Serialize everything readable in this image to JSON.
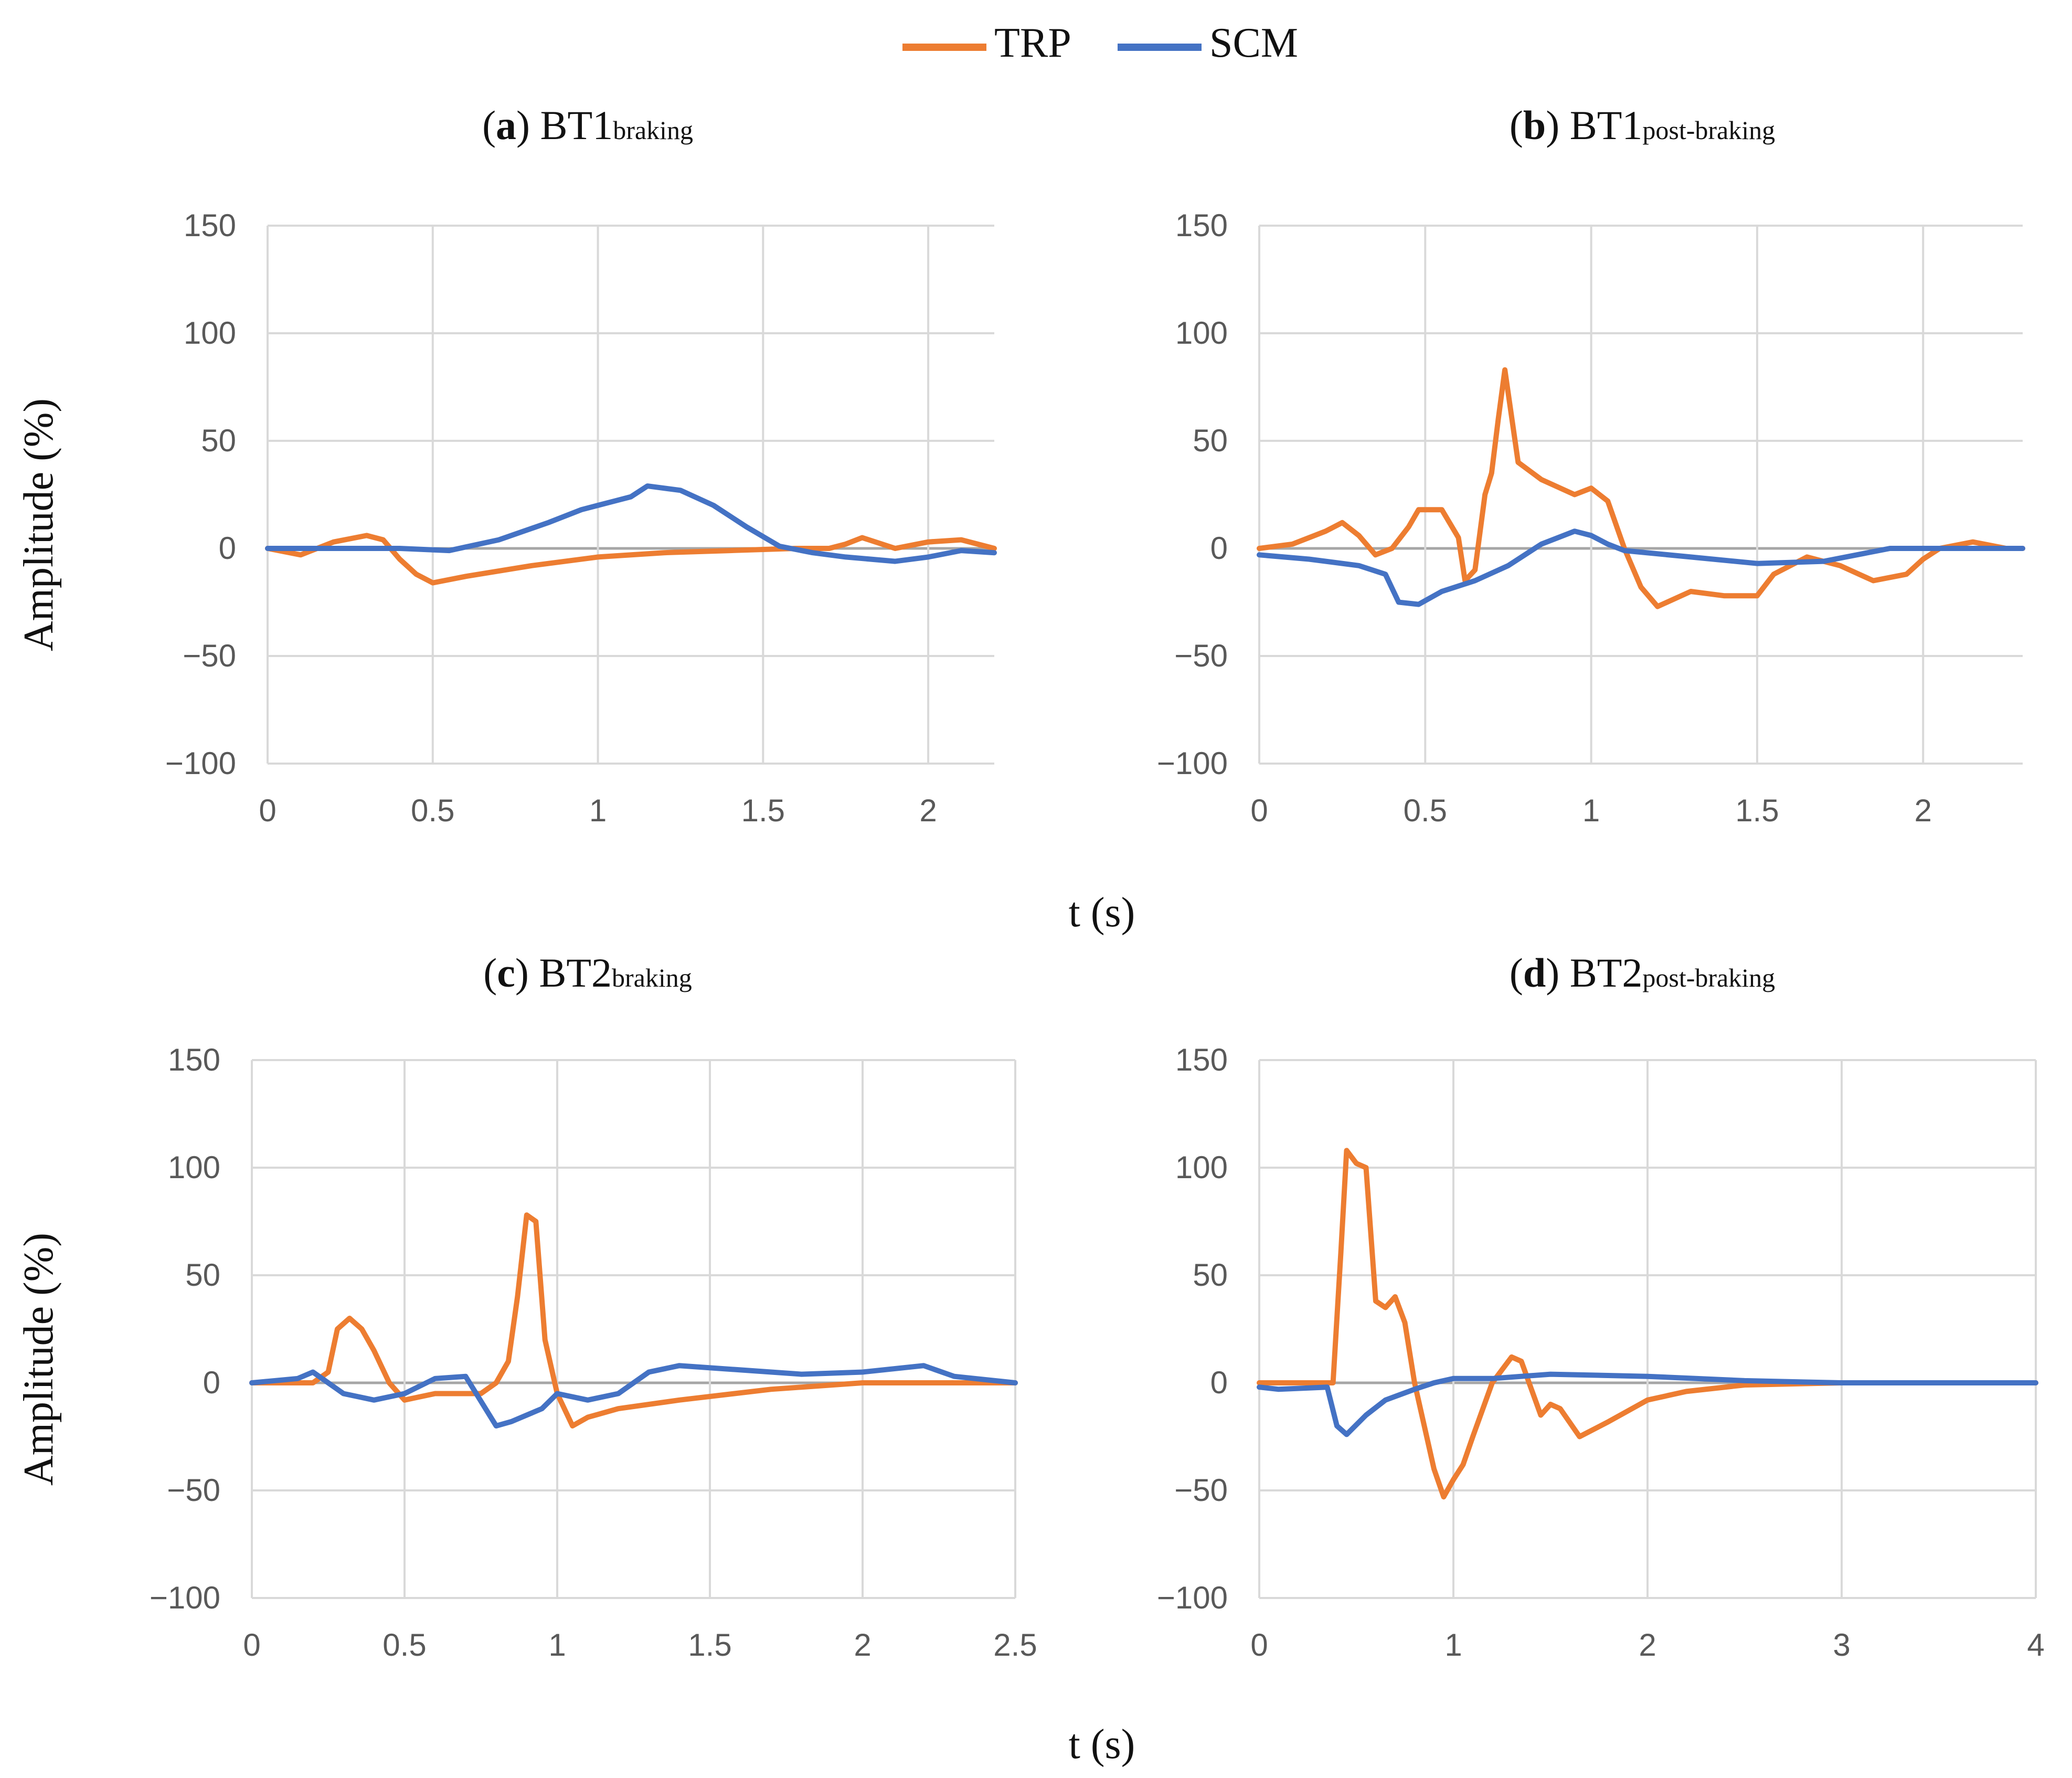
{
  "legend": [
    {
      "name": "TRP",
      "color": "#ED7D31"
    },
    {
      "name": "SCM",
      "color": "#4472C4"
    }
  ],
  "y_axis_label_top": "Amplitude (%)",
  "y_axis_label_bottom": "Amplitude (%)",
  "x_axis_label_top": "t (s)",
  "x_axis_label_bottom": "t (s)",
  "chart_data": [
    {
      "type": "line",
      "letter": "a",
      "title_main": "BT1",
      "title_sub": "braking",
      "xlim": [
        0,
        2.2
      ],
      "ylim": [
        -100,
        150
      ],
      "xticks": [
        0,
        0.5,
        1,
        1.5,
        2
      ],
      "xtick_labels": [
        "0",
        "0.5",
        "1",
        "1.5",
        "2"
      ],
      "yticks": [
        -100,
        -50,
        0,
        50,
        100,
        150
      ],
      "ytick_labels": [
        "−100",
        "−50",
        "0",
        "50",
        "100",
        "150"
      ],
      "series": [
        {
          "name": "TRP",
          "color": "#ED7D31",
          "x": [
            0,
            0.1,
            0.2,
            0.3,
            0.35,
            0.4,
            0.45,
            0.5,
            0.6,
            0.8,
            1.0,
            1.2,
            1.4,
            1.6,
            1.7,
            1.75,
            1.8,
            1.9,
            2.0,
            2.1,
            2.2
          ],
          "y": [
            0,
            -3,
            3,
            6,
            4,
            -5,
            -12,
            -16,
            -13,
            -8,
            -4,
            -2,
            -1,
            0,
            0,
            2,
            5,
            0,
            3,
            4,
            0
          ]
        },
        {
          "name": "SCM",
          "color": "#4472C4",
          "x": [
            0,
            0.2,
            0.4,
            0.55,
            0.7,
            0.85,
            0.95,
            1.05,
            1.1,
            1.15,
            1.25,
            1.35,
            1.45,
            1.55,
            1.65,
            1.75,
            1.9,
            2.0,
            2.1,
            2.2
          ],
          "y": [
            0,
            0,
            0,
            -1,
            4,
            12,
            18,
            22,
            24,
            29,
            27,
            20,
            10,
            1,
            -2,
            -4,
            -6,
            -4,
            -1,
            -2
          ]
        }
      ]
    },
    {
      "type": "line",
      "letter": "b",
      "title_main": "BT1",
      "title_sub": "post-braking",
      "xlim": [
        0,
        2.3
      ],
      "ylim": [
        -100,
        150
      ],
      "xticks": [
        0,
        0.5,
        1,
        1.5,
        2
      ],
      "xtick_labels": [
        "0",
        "0.5",
        "1",
        "1.5",
        "2"
      ],
      "yticks": [
        -100,
        -50,
        0,
        50,
        100,
        150
      ],
      "ytick_labels": [
        "−100",
        "−50",
        "0",
        "50",
        "100",
        "150"
      ],
      "series": [
        {
          "name": "TRP",
          "color": "#ED7D31",
          "x": [
            0,
            0.1,
            0.2,
            0.25,
            0.3,
            0.35,
            0.4,
            0.45,
            0.48,
            0.55,
            0.6,
            0.62,
            0.65,
            0.68,
            0.7,
            0.72,
            0.74,
            0.78,
            0.85,
            0.95,
            1.0,
            1.05,
            1.1,
            1.15,
            1.2,
            1.3,
            1.4,
            1.5,
            1.55,
            1.6,
            1.65,
            1.75,
            1.85,
            1.95,
            2.0,
            2.05,
            2.15,
            2.25,
            2.3
          ],
          "y": [
            0,
            2,
            8,
            12,
            6,
            -3,
            0,
            10,
            18,
            18,
            5,
            -15,
            -10,
            25,
            35,
            60,
            83,
            40,
            32,
            25,
            28,
            22,
            0,
            -18,
            -27,
            -20,
            -22,
            -22,
            -12,
            -8,
            -4,
            -8,
            -15,
            -12,
            -5,
            0,
            3,
            0,
            0
          ]
        },
        {
          "name": "SCM",
          "color": "#4472C4",
          "x": [
            0,
            0.15,
            0.3,
            0.38,
            0.42,
            0.48,
            0.55,
            0.65,
            0.75,
            0.85,
            0.95,
            1.0,
            1.05,
            1.1,
            1.3,
            1.5,
            1.7,
            1.9,
            2.0,
            2.1,
            2.3
          ],
          "y": [
            -3,
            -5,
            -8,
            -12,
            -25,
            -26,
            -20,
            -15,
            -8,
            2,
            8,
            6,
            2,
            -1,
            -4,
            -7,
            -6,
            0,
            0,
            0,
            0
          ]
        }
      ]
    },
    {
      "type": "line",
      "letter": "c",
      "title_main": "BT2",
      "title_sub": "braking",
      "xlim": [
        0,
        2.5
      ],
      "ylim": [
        -100,
        150
      ],
      "xticks": [
        0,
        0.5,
        1,
        1.5,
        2,
        2.5
      ],
      "xtick_labels": [
        "0",
        "0.5",
        "1",
        "1.5",
        "2",
        "2.5"
      ],
      "yticks": [
        -100,
        -50,
        0,
        50,
        100,
        150
      ],
      "ytick_labels": [
        "−100",
        "−50",
        "0",
        "50",
        "100",
        "150"
      ],
      "series": [
        {
          "name": "TRP",
          "color": "#ED7D31",
          "x": [
            0,
            0.2,
            0.25,
            0.28,
            0.32,
            0.36,
            0.4,
            0.45,
            0.5,
            0.6,
            0.75,
            0.8,
            0.84,
            0.87,
            0.9,
            0.93,
            0.96,
            1.0,
            1.05,
            1.1,
            1.2,
            1.4,
            1.7,
            2.0,
            2.5
          ],
          "y": [
            0,
            0,
            5,
            25,
            30,
            25,
            15,
            0,
            -8,
            -5,
            -5,
            0,
            10,
            40,
            78,
            75,
            20,
            -5,
            -20,
            -16,
            -12,
            -8,
            -3,
            0,
            0
          ]
        },
        {
          "name": "SCM",
          "color": "#4472C4",
          "x": [
            0,
            0.15,
            0.2,
            0.25,
            0.3,
            0.4,
            0.5,
            0.6,
            0.7,
            0.8,
            0.85,
            0.9,
            0.95,
            1.0,
            1.1,
            1.2,
            1.3,
            1.4,
            1.6,
            1.8,
            2.0,
            2.2,
            2.3,
            2.5
          ],
          "y": [
            0,
            2,
            5,
            0,
            -5,
            -8,
            -5,
            2,
            3,
            -20,
            -18,
            -15,
            -12,
            -5,
            -8,
            -5,
            5,
            8,
            6,
            4,
            5,
            8,
            3,
            0
          ]
        }
      ]
    },
    {
      "type": "line",
      "letter": "d",
      "title_main": "BT2",
      "title_sub": "post-braking",
      "xlim": [
        0,
        4
      ],
      "ylim": [
        -100,
        150
      ],
      "xticks": [
        0,
        1,
        2,
        3,
        4
      ],
      "xtick_labels": [
        "0",
        "1",
        "2",
        "3",
        "4"
      ],
      "yticks": [
        -100,
        -50,
        0,
        50,
        100,
        150
      ],
      "ytick_labels": [
        "−100",
        "−50",
        "0",
        "50",
        "100",
        "150"
      ],
      "series": [
        {
          "name": "TRP",
          "color": "#ED7D31",
          "x": [
            0,
            0.38,
            0.42,
            0.45,
            0.5,
            0.55,
            0.6,
            0.65,
            0.7,
            0.75,
            0.8,
            0.85,
            0.9,
            0.95,
            1.0,
            1.05,
            1.1,
            1.2,
            1.3,
            1.35,
            1.45,
            1.5,
            1.55,
            1.65,
            1.8,
            2.0,
            2.2,
            2.5,
            3.0,
            3.5,
            4.0
          ],
          "y": [
            0,
            0,
            60,
            108,
            102,
            100,
            38,
            35,
            40,
            28,
            0,
            -20,
            -40,
            -53,
            -45,
            -38,
            -25,
            0,
            12,
            10,
            -15,
            -10,
            -12,
            -25,
            -18,
            -8,
            -4,
            -1,
            0,
            0,
            0
          ]
        },
        {
          "name": "SCM",
          "color": "#4472C4",
          "x": [
            0,
            0.1,
            0.35,
            0.4,
            0.45,
            0.55,
            0.65,
            0.8,
            0.9,
            1.0,
            1.2,
            1.5,
            2.0,
            2.5,
            3.0,
            4.0
          ],
          "y": [
            -2,
            -3,
            -2,
            -20,
            -24,
            -15,
            -8,
            -3,
            0,
            2,
            2,
            4,
            3,
            1,
            0,
            0
          ]
        }
      ]
    }
  ]
}
